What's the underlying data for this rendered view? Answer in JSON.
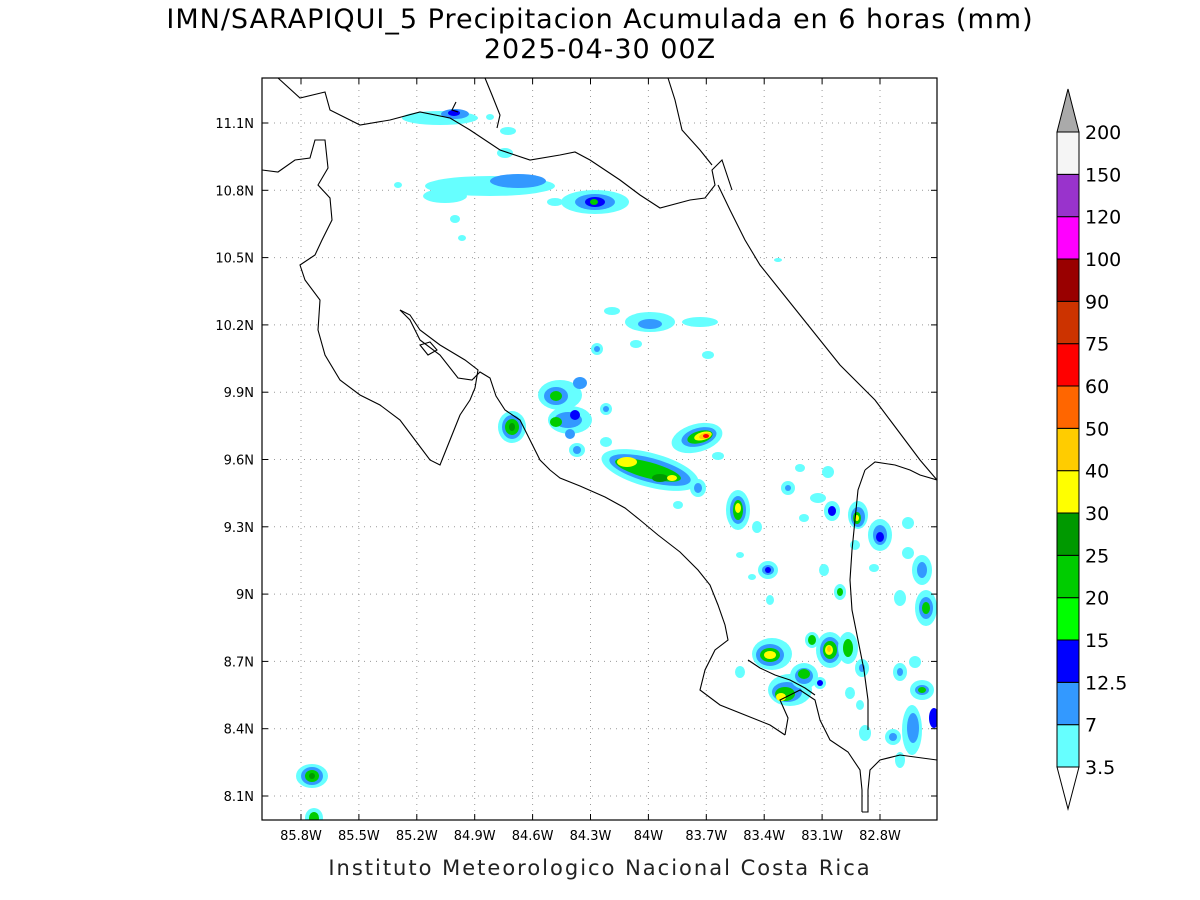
{
  "title": {
    "line1": "IMN/SARAPIQUI_5 Precipitacion Acumulada en 6 horas (mm)",
    "line2": "2025-04-30 00Z"
  },
  "footer": "Instituto Meteorologico Nacional Costa Rica",
  "map": {
    "lon_ticks": [
      "85.8W",
      "85.5W",
      "85.2W",
      "84.9W",
      "84.6W",
      "84.3W",
      "84W",
      "83.7W",
      "83.4W",
      "83.1W",
      "82.8W"
    ],
    "lat_ticks": [
      "11.1N",
      "10.8N",
      "10.5N",
      "10.2N",
      "9.9N",
      "9.6N",
      "9.3N",
      "9N",
      "8.7N",
      "8.4N",
      "8.1N"
    ]
  },
  "colorbar": {
    "labels": [
      "3.5",
      "7",
      "12.5",
      "15",
      "20",
      "25",
      "30",
      "40",
      "50",
      "60",
      "75",
      "90",
      "100",
      "120",
      "150",
      "200"
    ],
    "colors": [
      "#66ffff",
      "#3399ff",
      "#0000ff",
      "#00ff00",
      "#00cc00",
      "#009900",
      "#ffff00",
      "#ffcc00",
      "#ff6600",
      "#ff0000",
      "#cc3300",
      "#990000",
      "#ff00ff",
      "#9933cc",
      "#f5f5f5"
    ],
    "top_arrow_color": "#aaaaaa",
    "bottom_arrow_color": "#ffffff"
  }
}
